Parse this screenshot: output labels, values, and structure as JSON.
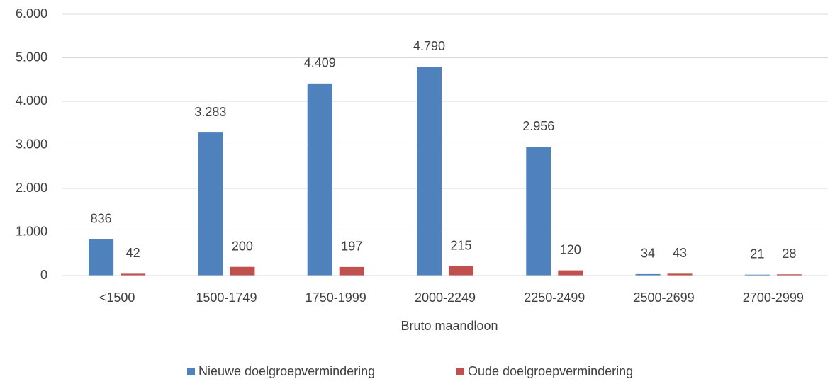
{
  "chart_data": {
    "type": "bar",
    "x_label": "Bruto maandloon",
    "categories": [
      "<1500",
      "1500-1749",
      "1750-1999",
      "2000-2249",
      "2250-2499",
      "2500-2699",
      "2700-2999"
    ],
    "series": [
      {
        "name": "Nieuwe doelgroepvermindering",
        "color": "#4f81bd",
        "values": [
          836,
          3283,
          4409,
          4790,
          2956,
          34,
          21
        ],
        "value_labels": [
          "836",
          "3.283",
          "4.409",
          "4.790",
          "2.956",
          "34",
          "21"
        ]
      },
      {
        "name": "Oude doelgroepvermindering",
        "color": "#c0504d",
        "values": [
          42,
          200,
          197,
          215,
          120,
          43,
          28
        ],
        "value_labels": [
          "42",
          "200",
          "197",
          "215",
          "120",
          "43",
          "28"
        ]
      }
    ],
    "ylim": [
      0,
      6000
    ],
    "yticks": [
      0,
      {
        "value": 1000,
        "label": "1.000"
      },
      {
        "value": 2000,
        "label": "2.000"
      },
      {
        "value": 3000,
        "label": "3.000"
      },
      {
        "value": 4000,
        "label": "4.000"
      },
      {
        "value": 5000,
        "label": "5.000"
      },
      {
        "value": 6000,
        "label": "6.000"
      }
    ],
    "grid": true,
    "legend": "bottom"
  }
}
